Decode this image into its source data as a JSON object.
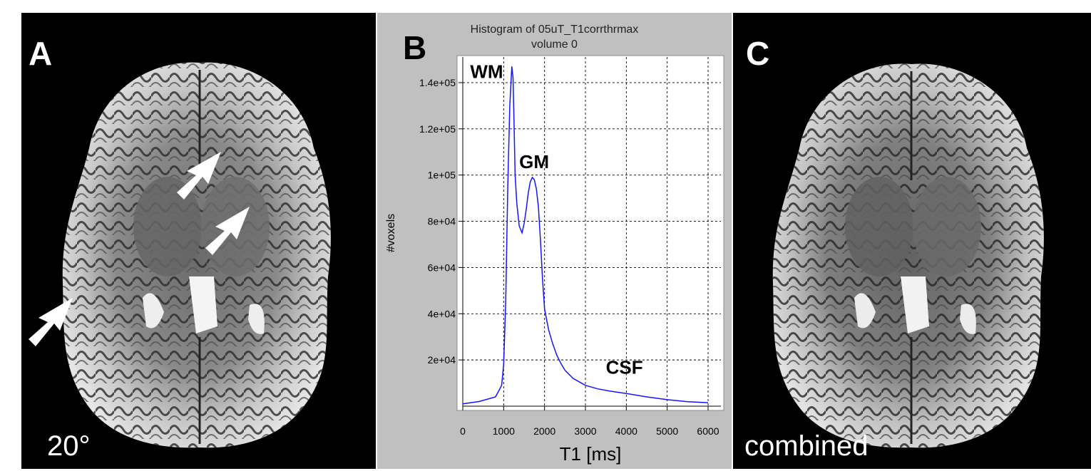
{
  "figure": {
    "panels": [
      {
        "letter": "A",
        "caption": "20°"
      },
      {
        "letter": "B"
      },
      {
        "letter": "C",
        "caption": "combined"
      }
    ],
    "colors": {
      "curve": "#1414ff",
      "panel_bg": "#c0c0c0",
      "plot_bg": "#ffffff",
      "grid": "#000000",
      "arrow": "#ffffff"
    }
  },
  "chart_data": {
    "type": "line",
    "title": "Histogram of 05uT_T1corrthrmax",
    "subtitle": "volume 0",
    "xlabel": "T1 [ms]",
    "ylabel": "#voxels",
    "xlim": [
      0,
      6000
    ],
    "ylim": [
      0,
      148000
    ],
    "grid": true,
    "xticks": [
      0,
      1000,
      2000,
      3000,
      4000,
      5000,
      6000
    ],
    "xtick_labels": [
      "0",
      "1000",
      "2000",
      "3000",
      "4000",
      "5000",
      "6000"
    ],
    "yticks": [
      20000,
      40000,
      60000,
      80000,
      100000,
      120000,
      140000
    ],
    "ytick_labels": [
      "2e+04",
      "4e+04",
      "6e+04",
      "8e+04",
      "1e+05",
      "1.2e+05",
      "1.4e+05"
    ],
    "series": [
      {
        "x": [
          0,
          400,
          800,
          950,
          1000,
          1050,
          1100,
          1150,
          1200,
          1230,
          1250,
          1280,
          1320,
          1380,
          1450,
          1500,
          1550,
          1600,
          1650,
          1700,
          1750,
          1800,
          1850,
          1900,
          1950,
          2000,
          2100,
          2200,
          2300,
          2400,
          2500,
          2700,
          3000,
          3300,
          3600,
          4000,
          4500,
          5000,
          5500,
          6000
        ],
        "y": [
          1000,
          2000,
          4000,
          9000,
          18000,
          45000,
          95000,
          130000,
          147000,
          142000,
          125000,
          100000,
          88000,
          78000,
          75000,
          79000,
          85000,
          92000,
          97000,
          99000,
          98000,
          94000,
          86000,
          72000,
          55000,
          42000,
          33000,
          27000,
          22000,
          18500,
          15500,
          12000,
          9000,
          7500,
          6500,
          5500,
          4000,
          2800,
          1900,
          1500
        ]
      }
    ],
    "annotations": [
      {
        "text": "WM",
        "x": 180,
        "y": 142000
      },
      {
        "text": "GM",
        "x": 1380,
        "y": 103000
      },
      {
        "text": "CSF",
        "x": 3500,
        "y": 14000
      }
    ]
  }
}
